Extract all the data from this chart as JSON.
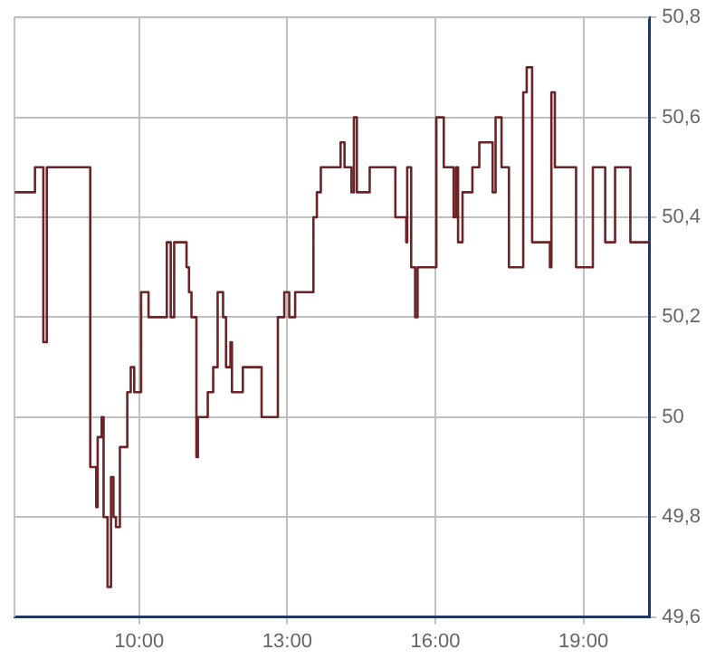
{
  "chart_data": {
    "type": "step",
    "x": [
      7.48,
      7.89,
      8.06,
      8.13,
      9.01,
      9.13,
      9.16,
      9.24,
      9.28,
      9.36,
      9.43,
      9.48,
      9.53,
      9.61,
      9.76,
      9.83,
      9.9,
      10.04,
      10.19,
      10.56,
      10.64,
      10.71,
      10.96,
      11.01,
      11.06,
      11.16,
      11.19,
      11.39,
      11.5,
      11.59,
      11.7,
      11.76,
      11.85,
      11.88,
      12.1,
      12.48,
      12.81,
      12.94,
      13.04,
      13.16,
      13.53,
      13.6,
      13.68,
      14.08,
      14.16,
      14.3,
      14.35,
      14.41,
      14.67,
      15.19,
      15.41,
      15.43,
      15.51,
      15.59,
      15.64,
      16.02,
      16.17,
      16.37,
      16.42,
      16.46,
      16.55,
      16.75,
      16.89,
      17.16,
      17.22,
      17.34,
      17.49,
      17.78,
      17.85,
      17.96,
      18.32,
      18.35,
      18.42,
      18.85,
      19.19,
      19.44,
      19.64,
      19.95,
      20.32
    ],
    "series": [
      {
        "color": "#6b2326",
        "values": [
          50.45,
          50.5,
          50.15,
          50.5,
          49.9,
          49.82,
          49.96,
          50.0,
          49.8,
          49.66,
          49.88,
          49.8,
          49.78,
          49.94,
          50.05,
          50.1,
          50.05,
          50.25,
          50.2,
          50.35,
          50.2,
          50.35,
          50.3,
          50.25,
          50.2,
          49.92,
          50.0,
          50.05,
          50.1,
          50.25,
          50.2,
          50.1,
          50.15,
          50.05,
          50.1,
          50.0,
          50.2,
          50.25,
          50.2,
          50.25,
          50.4,
          50.45,
          50.5,
          50.55,
          50.5,
          50.45,
          50.6,
          50.45,
          50.5,
          50.4,
          50.35,
          50.5,
          50.3,
          50.2,
          50.3,
          50.6,
          50.5,
          50.4,
          50.5,
          50.35,
          50.45,
          50.5,
          50.55,
          50.45,
          50.6,
          50.5,
          50.3,
          50.65,
          50.7,
          50.35,
          50.3,
          50.65,
          50.5,
          50.3,
          50.5,
          50.35,
          50.5,
          50.35,
          50.35
        ]
      }
    ],
    "xlim": [
      7.475,
      20.33
    ],
    "xticks": [
      {
        "value": 10,
        "label": "10:00"
      },
      {
        "value": 13,
        "label": "13:00"
      },
      {
        "value": 16,
        "label": "16:00"
      },
      {
        "value": 19,
        "label": "19:00"
      }
    ],
    "ylim": [
      49.6,
      50.8
    ],
    "yticks": [
      {
        "value": 49.6,
        "label": "49,6"
      },
      {
        "value": 49.8,
        "label": "49,8"
      },
      {
        "value": 50,
        "label": "50"
      },
      {
        "value": 50.2,
        "label": "50,2"
      },
      {
        "value": 50.4,
        "label": "50,4"
      },
      {
        "value": 50.6,
        "label": "50,6"
      },
      {
        "value": 50.8,
        "label": "50,8"
      }
    ],
    "grid": true,
    "legend": false,
    "marker": "none",
    "line_style": "solid"
  }
}
